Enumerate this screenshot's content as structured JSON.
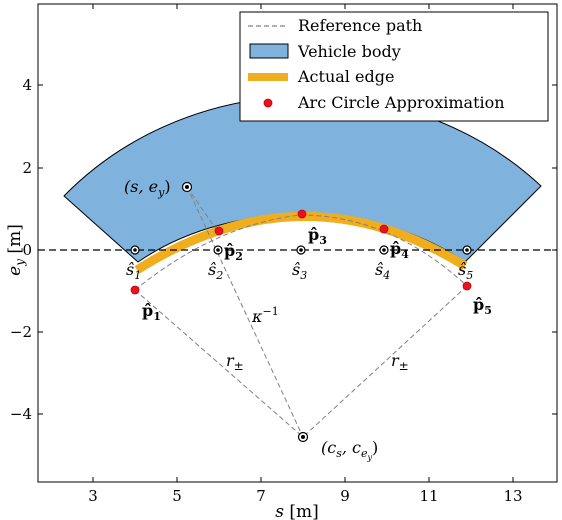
{
  "axes": {
    "xlabel_var": "s",
    "xlabel_unit": "[m]",
    "ylabel_var": "e",
    "ylabel_sub": "y",
    "ylabel_unit": "[m]",
    "x_ticks": [
      "3",
      "5",
      "7",
      "9",
      "11",
      "13"
    ],
    "y_ticks": [
      "4",
      "2",
      "0",
      "−2",
      "−4"
    ]
  },
  "legend": {
    "reference_path": "Reference path",
    "vehicle_body": "Vehicle body",
    "actual_edge": "Actual edge",
    "arc_circle": "Arc Circle Approximation"
  },
  "annotations": {
    "point_label": "(s, e",
    "point_label_sub": "y",
    "center_label_a": "(c",
    "center_label_a_sub": "s",
    "center_label_b": ", c",
    "center_label_b_sub1": "e",
    "center_label_b_sub2": "y",
    "kappa": "κ",
    "kappa_sup": "−1",
    "r_pm": "r",
    "r_pm_sub": "±",
    "s_hat": "ŝ",
    "p_hat": "p̂",
    "indices": [
      "1",
      "2",
      "3",
      "4",
      "5"
    ]
  },
  "colors": {
    "vehicle_body": "#7fb3de",
    "actual_edge": "#f0ae1e",
    "arc_points": "#e8141c",
    "reference_line": "#000000",
    "construction_lines": "#808080"
  }
}
